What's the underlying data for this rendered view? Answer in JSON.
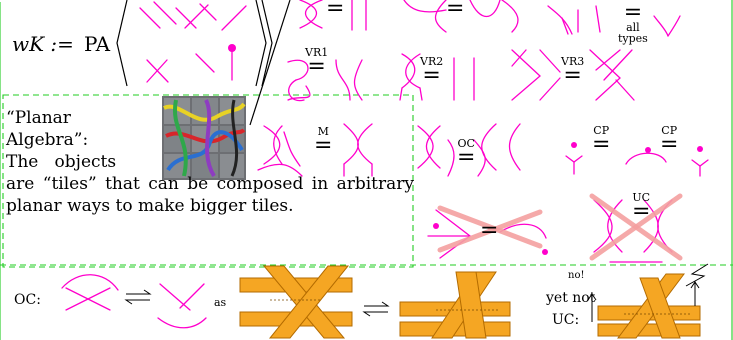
{
  "definition": {
    "lhs": "wK :=",
    "pa": "PA"
  },
  "relations": {
    "top_a": "=",
    "top_b": "=",
    "all_types_eq": "=",
    "all": "all",
    "types": "types",
    "vr1": "VR1",
    "vr2": "VR2",
    "vr3": "VR3",
    "m": "M",
    "oc": "OC",
    "cp1": "CP",
    "cp2": "CP",
    "uc": "UC",
    "eq": "="
  },
  "planar_algebra": {
    "line1": "“Planar",
    "line2": "Algebra”:",
    "line3": "The   objects",
    "line4": "are “tiles” that can be composed in arbitrary planar ways to make bigger tiles."
  },
  "bottom": {
    "oc_label": "OC:",
    "as": "as",
    "no": "no!",
    "yet_not": "yet not",
    "uc_label": "UC:"
  },
  "colors": {
    "strand": "#ff00cc",
    "dashed_box": "#22cc22",
    "cross_out": "#f4a0a0",
    "band": "#f5a623",
    "band_edge": "#b36b00"
  }
}
